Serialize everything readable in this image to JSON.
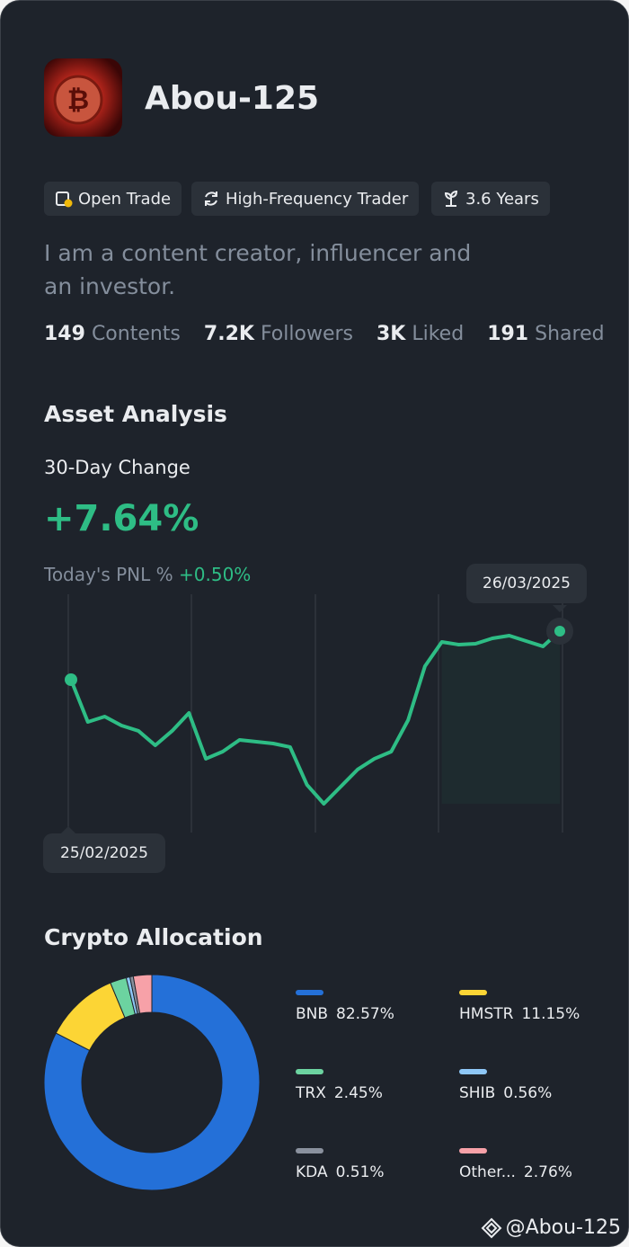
{
  "profile": {
    "name": "Abou-125",
    "tags": [
      "Open Trade",
      "High-Frequency Trader",
      "3.6 Years"
    ],
    "bio": "I am a content creator, influencer and an investor.",
    "stats": [
      {
        "value": "149",
        "label": "Contents"
      },
      {
        "value": "7.2K",
        "label": "Followers"
      },
      {
        "value": "3K",
        "label": "Liked"
      },
      {
        "value": "191",
        "label": "Shared"
      }
    ]
  },
  "asset_analysis": {
    "title": "Asset Analysis",
    "change_label": "30-Day Change",
    "change": "+7.64%",
    "pnl_label": "Today's PNL %",
    "pnl": "+0.50%",
    "chart": {
      "type": "line",
      "color": "#2ebd85",
      "categories": [
        "25/02/2025",
        null,
        null,
        null,
        null,
        null,
        null,
        null,
        null,
        null,
        null,
        null,
        null,
        null,
        null,
        null,
        null,
        null,
        null,
        null,
        null,
        null,
        null,
        null,
        null,
        null,
        null,
        null,
        null,
        "26/03/2025"
      ],
      "values": [
        0,
        -6.65,
        -5.8,
        -7.22,
        -8.06,
        -10.33,
        -8.06,
        -5.24,
        -12.45,
        -11.32,
        -9.48,
        -9.76,
        -10.05,
        -10.61,
        -16.55,
        -19.53,
        -16.84,
        -14.15,
        -12.45,
        -11.32,
        -6.37,
        2.12,
        5.94,
        5.52,
        5.66,
        6.51,
        6.93,
        6.08,
        5.24,
        7.64
      ]
    }
  },
  "allocation": {
    "title": "Crypto Allocation",
    "chart": {
      "type": "donut",
      "categories": [
        "BNB",
        "HMSTR",
        "TRX",
        "SHIB",
        "KDA",
        "Other..."
      ],
      "values": [
        82.57,
        11.15,
        2.45,
        0.56,
        0.51,
        2.76
      ],
      "value_labels": [
        "82.57%",
        "11.15%",
        "2.45%",
        "0.56%",
        "0.51%",
        "2.76%"
      ],
      "colors": [
        "#2470d8",
        "#fcd535",
        "#6cd3a0",
        "#8ec7f7",
        "#8a919e",
        "#f7a1a8"
      ]
    }
  },
  "watermark": "@Abou-125"
}
